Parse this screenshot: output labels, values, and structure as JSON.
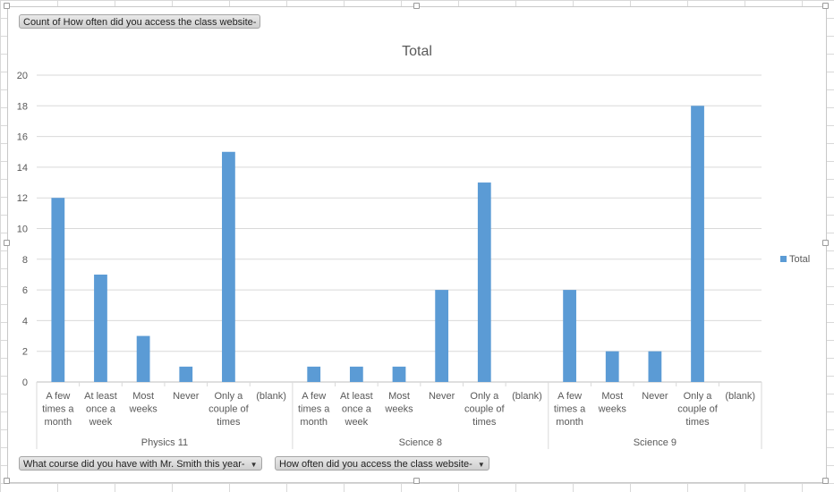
{
  "field_buttons": {
    "value_field": "Count of How often did you access the class website-",
    "axis_field_1": "What course did you have with Mr. Smith this year-",
    "axis_field_2": "How often did you access the class website-"
  },
  "chart_data": {
    "type": "bar",
    "title": "Total",
    "xlabel": "",
    "ylabel": "",
    "ylim": [
      0,
      20
    ],
    "yticks": [
      0,
      2,
      4,
      6,
      8,
      10,
      12,
      14,
      16,
      18,
      20
    ],
    "grid": true,
    "legend_position": "right",
    "series_color": "#5b9bd5",
    "series": [
      {
        "name": "Total"
      }
    ],
    "groups": [
      {
        "name": "Physics 11",
        "categories": [
          {
            "label": [
              "A few",
              "times a",
              "month"
            ],
            "value": 12
          },
          {
            "label": [
              "At least",
              "once a",
              "week"
            ],
            "value": 7
          },
          {
            "label": [
              "Most",
              "weeks"
            ],
            "value": 3
          },
          {
            "label": [
              "Never"
            ],
            "value": 1
          },
          {
            "label": [
              "Only a",
              "couple of",
              "times"
            ],
            "value": 15
          },
          {
            "label": [
              "(blank)"
            ],
            "value": 0
          }
        ]
      },
      {
        "name": "Science 8",
        "categories": [
          {
            "label": [
              "A few",
              "times a",
              "month"
            ],
            "value": 1
          },
          {
            "label": [
              "At least",
              "once a",
              "week"
            ],
            "value": 1
          },
          {
            "label": [
              "Most",
              "weeks"
            ],
            "value": 1
          },
          {
            "label": [
              "Never"
            ],
            "value": 6
          },
          {
            "label": [
              "Only a",
              "couple of",
              "times"
            ],
            "value": 13
          },
          {
            "label": [
              "(blank)"
            ],
            "value": 0
          }
        ]
      },
      {
        "name": "Science 9",
        "categories": [
          {
            "label": [
              "A few",
              "times a",
              "month"
            ],
            "value": 6
          },
          {
            "label": [
              "Most",
              "weeks"
            ],
            "value": 2
          },
          {
            "label": [
              "Never"
            ],
            "value": 2
          },
          {
            "label": [
              "Only a",
              "couple of",
              "times"
            ],
            "value": 18
          },
          {
            "label": [
              "(blank)"
            ],
            "value": 0
          }
        ]
      }
    ]
  }
}
